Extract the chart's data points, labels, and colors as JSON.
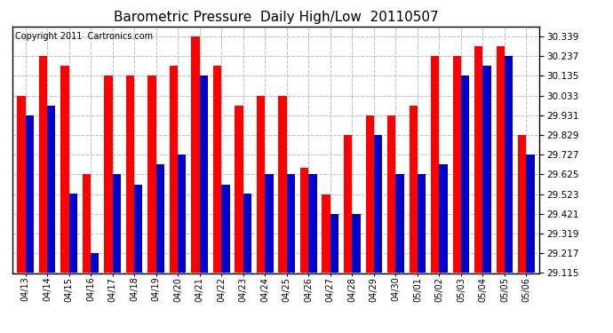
{
  "title": "Barometric Pressure  Daily High/Low  20110507",
  "copyright": "Copyright 2011  Cartronics.com",
  "dates": [
    "04/13",
    "04/14",
    "04/15",
    "04/16",
    "04/17",
    "04/18",
    "04/19",
    "04/20",
    "04/21",
    "04/22",
    "04/23",
    "04/24",
    "04/25",
    "04/26",
    "04/27",
    "04/28",
    "04/29",
    "04/30",
    "05/01",
    "05/02",
    "05/03",
    "05/04",
    "05/05",
    "05/06"
  ],
  "highs": [
    30.033,
    30.237,
    30.186,
    29.625,
    30.135,
    30.135,
    30.135,
    30.186,
    30.339,
    30.186,
    29.982,
    30.033,
    30.033,
    29.66,
    29.523,
    29.829,
    29.931,
    29.931,
    29.982,
    30.237,
    30.237,
    30.288,
    30.288,
    29.829
  ],
  "lows": [
    29.931,
    29.982,
    29.524,
    29.217,
    29.625,
    29.574,
    29.676,
    29.727,
    30.135,
    29.574,
    29.524,
    29.625,
    29.625,
    29.625,
    29.421,
    29.421,
    29.829,
    29.625,
    29.625,
    29.676,
    30.135,
    30.186,
    30.237,
    29.727
  ],
  "bar_width": 0.38,
  "high_color": "#ff0000",
  "low_color": "#0000cc",
  "background_color": "#ffffff",
  "grid_color": "#bbbbbb",
  "ylim_min": 29.115,
  "ylim_max": 30.39,
  "ybase": 29.115,
  "yticks": [
    29.115,
    29.217,
    29.319,
    29.421,
    29.523,
    29.625,
    29.727,
    29.829,
    29.931,
    30.033,
    30.135,
    30.237,
    30.339
  ],
  "title_fontsize": 11,
  "copyright_fontsize": 7,
  "tick_fontsize": 7,
  "ytick_fontsize": 7.5
}
